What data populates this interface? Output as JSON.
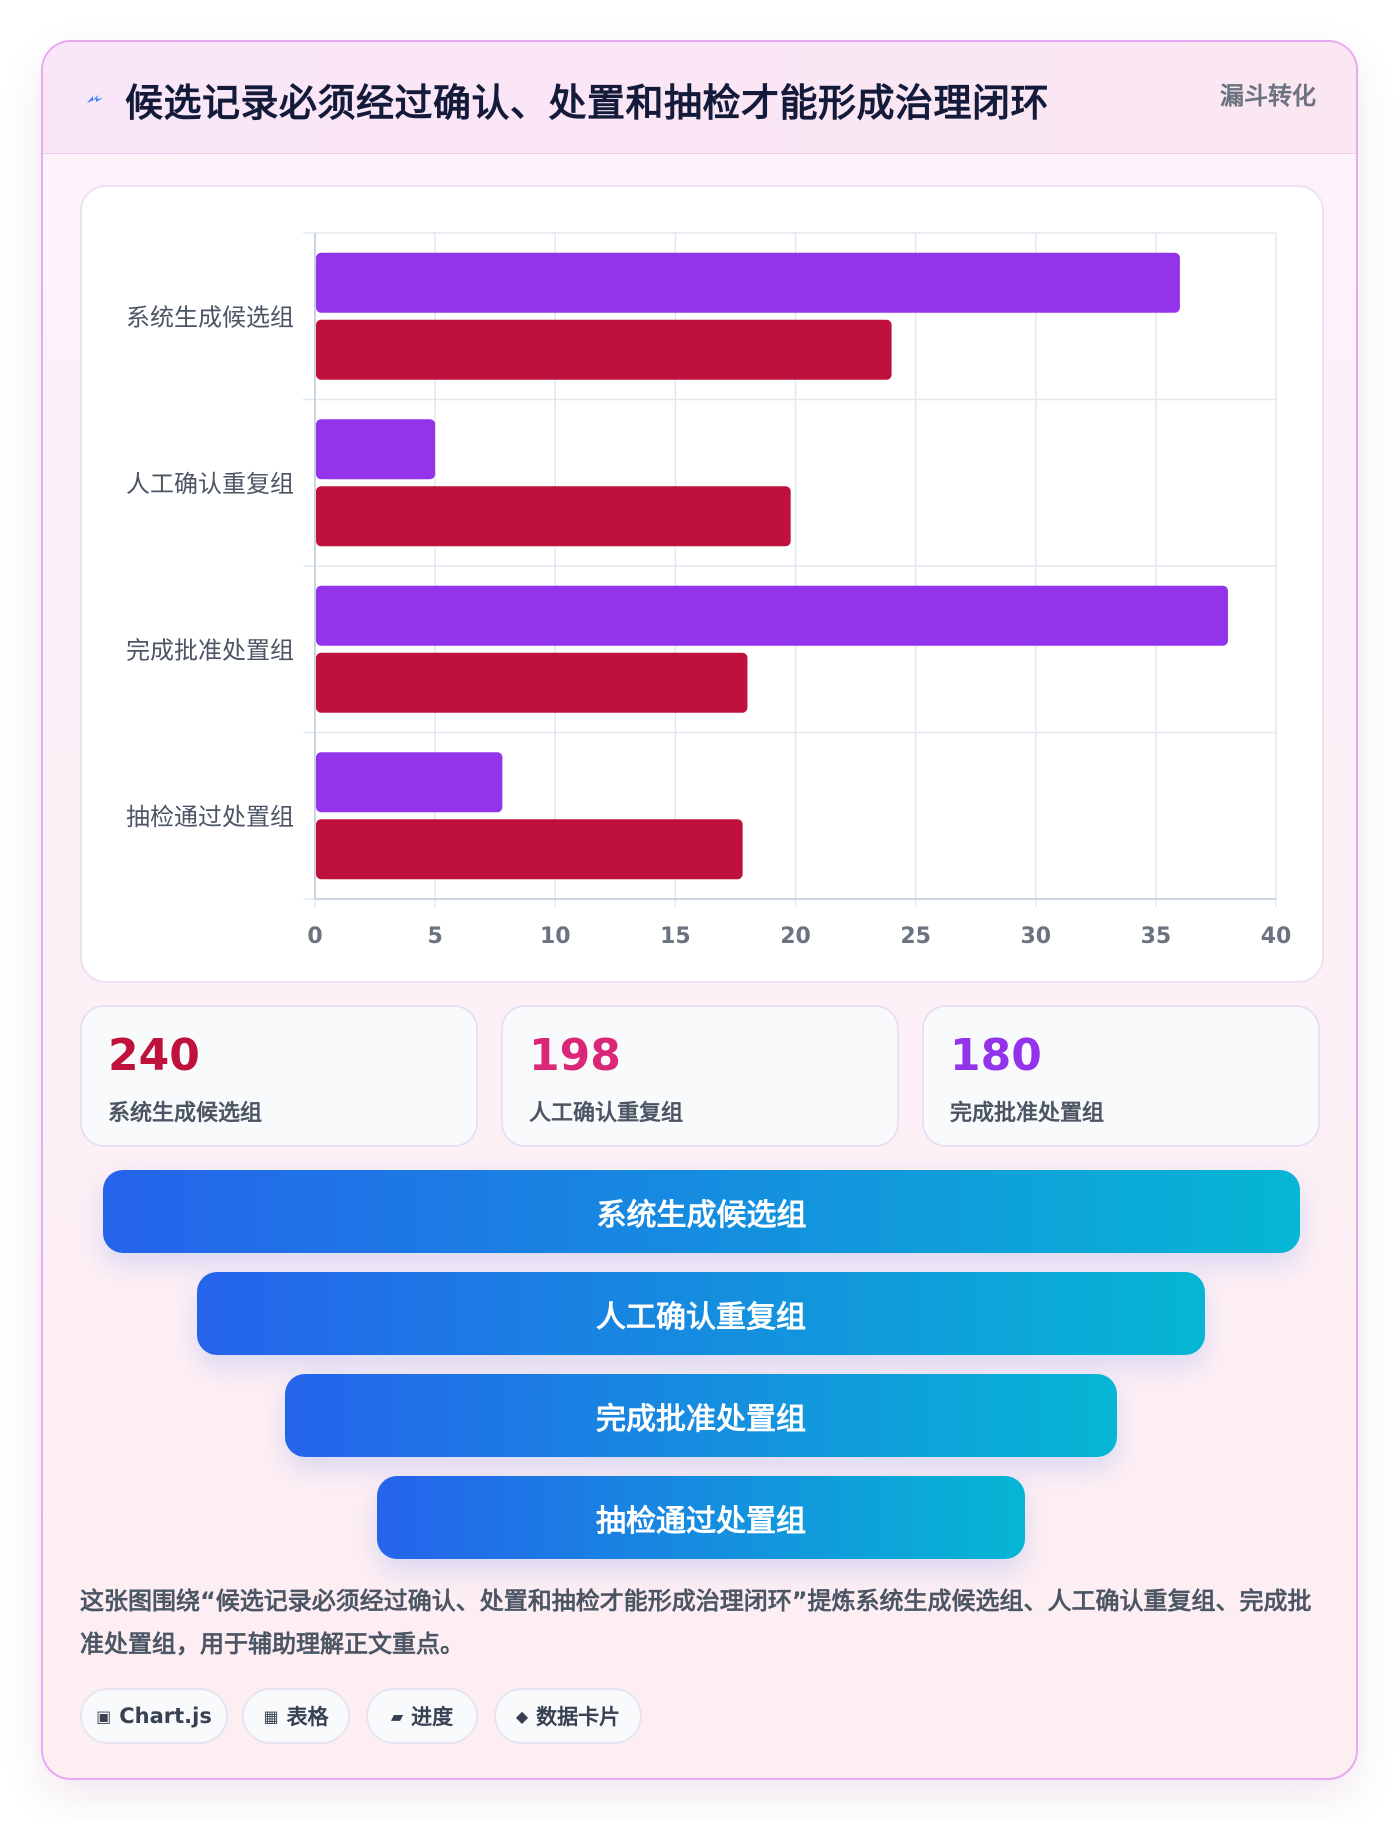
{
  "header": {
    "title": "候选记录必须经过确认、处置和抽检才能形成治理闭环",
    "tag": "漏斗转化"
  },
  "chart_data": {
    "type": "bar",
    "orientation": "horizontal",
    "categories": [
      "系统生成候选组",
      "人工确认重复组",
      "完成批准处置组",
      "抽检通过处置组"
    ],
    "series": [
      {
        "values": [
          36,
          5,
          38,
          7.8
        ],
        "color": "#9333ea"
      },
      {
        "values": [
          24,
          19.8,
          18,
          17.8
        ],
        "color": "#be123c"
      }
    ],
    "xlim": [
      0,
      40
    ],
    "xticks": [
      "0",
      "5",
      "10",
      "15",
      "20",
      "25",
      "30",
      "35",
      "40"
    ],
    "grid": true,
    "legend": "none"
  },
  "stats": [
    {
      "value": "240",
      "label": "系统生成候选组",
      "color": "#be123c"
    },
    {
      "value": "198",
      "label": "人工确认重复组",
      "color": "#db2777"
    },
    {
      "value": "180",
      "label": "完成批准处置组",
      "color": "#9333ea"
    }
  ],
  "funnel": [
    "系统生成候选组",
    "人工确认重复组",
    "完成批准处置组",
    "抽检通过处置组"
  ],
  "description": "这张图围绕“候选记录必须经过确认、处置和抽检才能形成治理闭环”提炼系统生成候选组、人工确认重复组、完成批准处置组，用于辅助理解正文重点。",
  "tags": [
    {
      "icon": "▣",
      "icon_name": "square-icon",
      "label": "Chart.js"
    },
    {
      "icon": "▦",
      "icon_name": "grid-icon",
      "label": "表格"
    },
    {
      "icon": "▰",
      "icon_name": "progress-icon",
      "label": "进度"
    },
    {
      "icon": "◆",
      "icon_name": "diamond-icon",
      "label": "数据卡片"
    }
  ]
}
